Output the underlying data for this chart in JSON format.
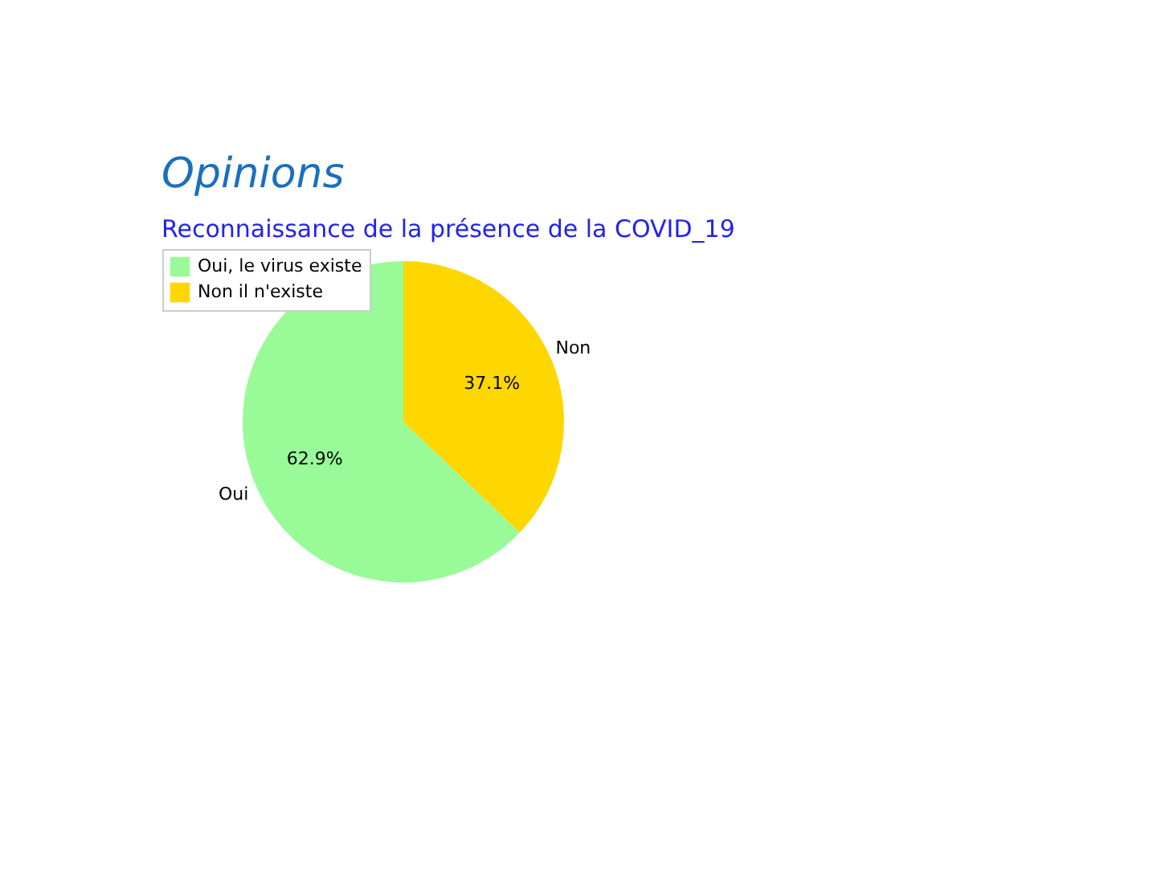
{
  "chart_data": {
    "type": "pie",
    "title": "Opinions",
    "subtitle": "Reconnaissance de la présence de la COVID_19",
    "categories": [
      "Oui, le virus existe",
      "Non il n'existe"
    ],
    "values": [
      62.9,
      37.1
    ],
    "colors": [
      "#98fb98",
      "#ffd700"
    ],
    "value_labels": [
      "62.9%",
      "37.1%"
    ],
    "annotations": [
      {
        "text": "Oui",
        "x": "Oui, le virus existe"
      },
      {
        "text": "Non",
        "x": "Non il n'existe"
      }
    ],
    "legend": "top left"
  }
}
